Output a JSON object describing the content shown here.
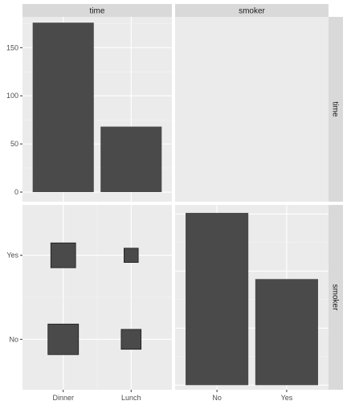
{
  "colors": {
    "panel_bg": "#ebebeb",
    "strip_bg": "#d9d9d9",
    "grid_major": "#ffffff",
    "grid_minor": "#f5f5f5",
    "bar_fill": "#4a4a4a",
    "tile_fill": "#4a4a4a",
    "tile_stroke": "#1a1a1a",
    "tick_text": "#4d4d4d",
    "strip_text": "#1a1a1a"
  },
  "strips": {
    "top": [
      "time",
      "smoker"
    ],
    "right": [
      "time",
      "smoker"
    ]
  },
  "chart_data": [
    {
      "type": "bar",
      "panel": "time-time",
      "categories": [
        "Dinner",
        "Lunch"
      ],
      "values": [
        176,
        68
      ],
      "ylim": [
        -10,
        182
      ],
      "yticks": [
        0,
        50,
        100,
        150
      ],
      "grid": true
    },
    {
      "type": "scatter",
      "panel": "smoker-time",
      "x_categories": [
        "Dinner",
        "Lunch"
      ],
      "y_categories": [
        "No",
        "Yes"
      ],
      "points": [
        {
          "x": "Dinner",
          "y": "No",
          "count": 106
        },
        {
          "x": "Dinner",
          "y": "Yes",
          "count": 70
        },
        {
          "x": "Lunch",
          "y": "No",
          "count": 45
        },
        {
          "x": "Lunch",
          "y": "Yes",
          "count": 23
        }
      ],
      "grid": true
    },
    {
      "type": "bar",
      "panel": "smoker-smoker",
      "categories": [
        "No",
        "Yes"
      ],
      "values": [
        151,
        93
      ],
      "ylim": [
        -4,
        158
      ],
      "grid": true
    }
  ]
}
